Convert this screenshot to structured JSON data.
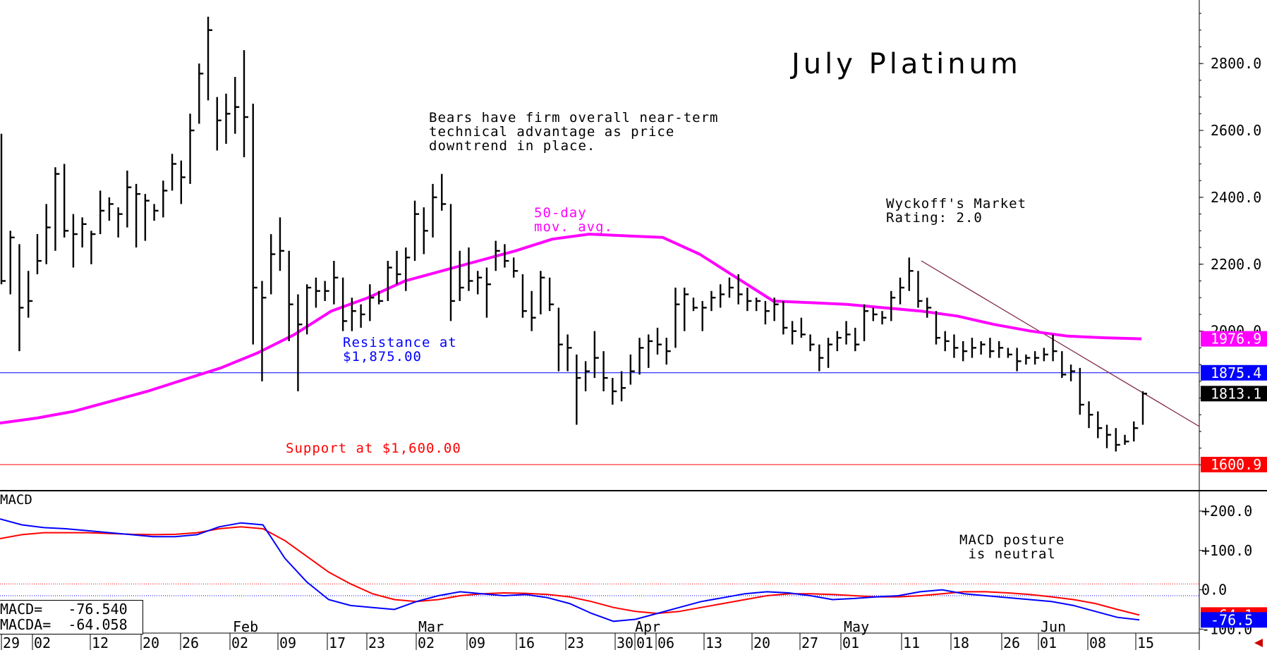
{
  "chart_data": {
    "type": "bar",
    "title": "July Platinum",
    "annotations": {
      "commentary": "Bears have firm overall near-term\ntechnical advantage as price\ndowntrend in place.",
      "ma_label": "50-day\nmov. avg.",
      "rating": "Wyckoff's Market\nRating: 2.0",
      "resistance": "Resistance at\n$1,875.00",
      "support": "Support at $1,600.00",
      "macd_comment": "MACD posture\n is neutral"
    },
    "price_axis": {
      "ylim": [
        1525,
        2990
      ],
      "ticks": [
        "2800.0",
        "2600.0",
        "2400.0",
        "2200.0",
        "2000.0"
      ],
      "tick_values": [
        2800,
        2600,
        2400,
        2200,
        2000
      ]
    },
    "price_tags": [
      {
        "value": 1976.9,
        "label": "1976.9",
        "color": "#ff00ff"
      },
      {
        "value": 1875.4,
        "label": "1875.4",
        "color": "#0000ff"
      },
      {
        "value": 1813.1,
        "label": "1813.1",
        "color": "#000000"
      },
      {
        "value": 1600.9,
        "label": "1600.9",
        "color": "#ff0000"
      }
    ],
    "resistance_level": 1875.4,
    "support_level": 1600.9,
    "trendline": {
      "from": [
        0,
        2210
      ],
      "to": [
        1,
        1715
      ]
    },
    "ohlc": [
      {
        "h": 2590,
        "l": 2140,
        "c": 2150
      },
      {
        "h": 2300,
        "l": 2110,
        "c": 2280
      },
      {
        "h": 2260,
        "l": 1940,
        "c": 2070
      },
      {
        "h": 2180,
        "l": 2040,
        "c": 2090
      },
      {
        "h": 2290,
        "l": 2170,
        "c": 2210
      },
      {
        "h": 2380,
        "l": 2200,
        "c": 2310
      },
      {
        "h": 2490,
        "l": 2240,
        "c": 2470
      },
      {
        "h": 2500,
        "l": 2280,
        "c": 2300
      },
      {
        "h": 2350,
        "l": 2190,
        "c": 2290
      },
      {
        "h": 2340,
        "l": 2250,
        "c": 2320
      },
      {
        "h": 2300,
        "l": 2200,
        "c": 2290
      },
      {
        "h": 2420,
        "l": 2290,
        "c": 2360
      },
      {
        "h": 2400,
        "l": 2330,
        "c": 2380
      },
      {
        "h": 2370,
        "l": 2280,
        "c": 2350
      },
      {
        "h": 2480,
        "l": 2310,
        "c": 2430
      },
      {
        "h": 2440,
        "l": 2250,
        "c": 2410
      },
      {
        "h": 2410,
        "l": 2270,
        "c": 2390
      },
      {
        "h": 2380,
        "l": 2330,
        "c": 2360
      },
      {
        "h": 2450,
        "l": 2340,
        "c": 2420
      },
      {
        "h": 2530,
        "l": 2420,
        "c": 2500
      },
      {
        "h": 2510,
        "l": 2380,
        "c": 2460
      },
      {
        "h": 2650,
        "l": 2440,
        "c": 2600
      },
      {
        "h": 2800,
        "l": 2620,
        "c": 2770
      },
      {
        "h": 2940,
        "l": 2690,
        "c": 2900
      },
      {
        "h": 2700,
        "l": 2540,
        "c": 2630
      },
      {
        "h": 2710,
        "l": 2560,
        "c": 2650
      },
      {
        "h": 2760,
        "l": 2590,
        "c": 2670
      },
      {
        "h": 2840,
        "l": 2520,
        "c": 2640
      },
      {
        "h": 2680,
        "l": 1960,
        "c": 2130
      },
      {
        "h": 2150,
        "l": 1850,
        "c": 2100
      },
      {
        "h": 2290,
        "l": 2110,
        "c": 2230
      },
      {
        "h": 2340,
        "l": 2180,
        "c": 2240
      },
      {
        "h": 2240,
        "l": 1970,
        "c": 2080
      },
      {
        "h": 2110,
        "l": 1820,
        "c": 2020
      },
      {
        "h": 2140,
        "l": 1990,
        "c": 2130
      },
      {
        "h": 2160,
        "l": 2070,
        "c": 2120
      },
      {
        "h": 2150,
        "l": 2090,
        "c": 2120
      },
      {
        "h": 2210,
        "l": 2080,
        "c": 2160
      },
      {
        "h": 2160,
        "l": 2000,
        "c": 2030
      },
      {
        "h": 2100,
        "l": 2000,
        "c": 2060
      },
      {
        "h": 2080,
        "l": 2010,
        "c": 2050
      },
      {
        "h": 2140,
        "l": 2030,
        "c": 2100
      },
      {
        "h": 2120,
        "l": 2080,
        "c": 2090
      },
      {
        "h": 2210,
        "l": 2090,
        "c": 2190
      },
      {
        "h": 2240,
        "l": 2140,
        "c": 2170
      },
      {
        "h": 2250,
        "l": 2120,
        "c": 2220
      },
      {
        "h": 2390,
        "l": 2210,
        "c": 2350
      },
      {
        "h": 2370,
        "l": 2230,
        "c": 2300
      },
      {
        "h": 2440,
        "l": 2280,
        "c": 2400
      },
      {
        "h": 2470,
        "l": 2360,
        "c": 2380
      },
      {
        "h": 2380,
        "l": 2030,
        "c": 2090
      },
      {
        "h": 2240,
        "l": 2090,
        "c": 2130
      },
      {
        "h": 2250,
        "l": 2120,
        "c": 2150
      },
      {
        "h": 2180,
        "l": 2110,
        "c": 2160
      },
      {
        "h": 2190,
        "l": 2040,
        "c": 2140
      },
      {
        "h": 2270,
        "l": 2180,
        "c": 2240
      },
      {
        "h": 2260,
        "l": 2190,
        "c": 2210
      },
      {
        "h": 2220,
        "l": 2160,
        "c": 2180
      },
      {
        "h": 2170,
        "l": 2040,
        "c": 2060
      },
      {
        "h": 2120,
        "l": 2000,
        "c": 2040
      },
      {
        "h": 2180,
        "l": 2050,
        "c": 2160
      },
      {
        "h": 2160,
        "l": 2060,
        "c": 2080
      },
      {
        "h": 2070,
        "l": 1880,
        "c": 1960
      },
      {
        "h": 1990,
        "l": 1880,
        "c": 1950
      },
      {
        "h": 1930,
        "l": 1720,
        "c": 1860
      },
      {
        "h": 1910,
        "l": 1820,
        "c": 1880
      },
      {
        "h": 2000,
        "l": 1860,
        "c": 1920
      },
      {
        "h": 1940,
        "l": 1820,
        "c": 1860
      },
      {
        "h": 1860,
        "l": 1780,
        "c": 1820
      },
      {
        "h": 1880,
        "l": 1790,
        "c": 1830
      },
      {
        "h": 1930,
        "l": 1840,
        "c": 1880
      },
      {
        "h": 1980,
        "l": 1870,
        "c": 1950
      },
      {
        "h": 1990,
        "l": 1890,
        "c": 1970
      },
      {
        "h": 2010,
        "l": 1930,
        "c": 1960
      },
      {
        "h": 1980,
        "l": 1900,
        "c": 1940
      },
      {
        "h": 2130,
        "l": 1950,
        "c": 2080
      },
      {
        "h": 2130,
        "l": 2000,
        "c": 2110
      },
      {
        "h": 2100,
        "l": 2060,
        "c": 2070
      },
      {
        "h": 2090,
        "l": 2000,
        "c": 2070
      },
      {
        "h": 2120,
        "l": 2060,
        "c": 2100
      },
      {
        "h": 2140,
        "l": 2070,
        "c": 2110
      },
      {
        "h": 2160,
        "l": 2100,
        "c": 2130
      },
      {
        "h": 2170,
        "l": 2080,
        "c": 2110
      },
      {
        "h": 2130,
        "l": 2060,
        "c": 2090
      },
      {
        "h": 2100,
        "l": 2060,
        "c": 2090
      },
      {
        "h": 2090,
        "l": 2020,
        "c": 2060
      },
      {
        "h": 2100,
        "l": 2030,
        "c": 2080
      },
      {
        "h": 2090,
        "l": 1990,
        "c": 2010
      },
      {
        "h": 2030,
        "l": 1960,
        "c": 2000
      },
      {
        "h": 2040,
        "l": 1980,
        "c": 1990
      },
      {
        "h": 1990,
        "l": 1940,
        "c": 1960
      },
      {
        "h": 1960,
        "l": 1880,
        "c": 1920
      },
      {
        "h": 1980,
        "l": 1890,
        "c": 1960
      },
      {
        "h": 2000,
        "l": 1940,
        "c": 1980
      },
      {
        "h": 2030,
        "l": 1960,
        "c": 1990
      },
      {
        "h": 2010,
        "l": 1940,
        "c": 1960
      },
      {
        "h": 2080,
        "l": 1970,
        "c": 2060
      },
      {
        "h": 2070,
        "l": 2030,
        "c": 2050
      },
      {
        "h": 2060,
        "l": 2020,
        "c": 2040
      },
      {
        "h": 2120,
        "l": 2030,
        "c": 2100
      },
      {
        "h": 2160,
        "l": 2080,
        "c": 2130
      },
      {
        "h": 2220,
        "l": 2120,
        "c": 2180
      },
      {
        "h": 2180,
        "l": 2070,
        "c": 2090
      },
      {
        "h": 2100,
        "l": 2040,
        "c": 2070
      },
      {
        "h": 2060,
        "l": 1960,
        "c": 1980
      },
      {
        "h": 2000,
        "l": 1940,
        "c": 1970
      },
      {
        "h": 1990,
        "l": 1920,
        "c": 1950
      },
      {
        "h": 1970,
        "l": 1910,
        "c": 1940
      },
      {
        "h": 1980,
        "l": 1920,
        "c": 1950
      },
      {
        "h": 1970,
        "l": 1930,
        "c": 1960
      },
      {
        "h": 1980,
        "l": 1920,
        "c": 1940
      },
      {
        "h": 1970,
        "l": 1920,
        "c": 1950
      },
      {
        "h": 1950,
        "l": 1920,
        "c": 1930
      },
      {
        "h": 1950,
        "l": 1880,
        "c": 1910
      },
      {
        "h": 1930,
        "l": 1900,
        "c": 1920
      },
      {
        "h": 1940,
        "l": 1900,
        "c": 1920
      },
      {
        "h": 1950,
        "l": 1910,
        "c": 1930
      },
      {
        "h": 1990,
        "l": 1910,
        "c": 1940
      },
      {
        "h": 1940,
        "l": 1860,
        "c": 1870
      },
      {
        "h": 1900,
        "l": 1850,
        "c": 1880
      },
      {
        "h": 1890,
        "l": 1750,
        "c": 1780
      },
      {
        "h": 1790,
        "l": 1710,
        "c": 1750
      },
      {
        "h": 1760,
        "l": 1680,
        "c": 1710
      },
      {
        "h": 1720,
        "l": 1650,
        "c": 1690
      },
      {
        "h": 1710,
        "l": 1640,
        "c": 1660
      },
      {
        "h": 1690,
        "l": 1660,
        "c": 1670
      },
      {
        "h": 1730,
        "l": 1670,
        "c": 1710
      },
      {
        "h": 1820,
        "l": 1720,
        "c": 1813.1
      }
    ],
    "ma50": [
      1725,
      1740,
      1760,
      1790,
      1820,
      1855,
      1890,
      1935,
      1990,
      2060,
      2100,
      2150,
      2180,
      2210,
      2240,
      2275,
      2290,
      2285,
      2280,
      2230,
      2160,
      2090,
      2085,
      2080,
      2070,
      2060,
      2045,
      2020,
      2000,
      1985,
      1980,
      1977
    ],
    "macd_axis": {
      "ylim": [
        -110,
        250
      ],
      "ticks": [
        "+200.0",
        "+100.0",
        "0.0",
        "-100.0"
      ],
      "tick_values": [
        200,
        100,
        0,
        -100
      ]
    },
    "macd_label": "MACD",
    "macd_tags": [
      {
        "value": -64.1,
        "label": "-64.1",
        "color": "#ff0000"
      },
      {
        "value": -76.5,
        "label": "-76.5",
        "color": "#0000ff"
      }
    ],
    "macd": [
      180,
      165,
      158,
      155,
      150,
      145,
      140,
      135,
      135,
      140,
      160,
      170,
      165,
      80,
      20,
      -25,
      -40,
      -45,
      -50,
      -30,
      -15,
      -5,
      -10,
      -15,
      -12,
      -20,
      -35,
      -60,
      -80,
      -75,
      -60,
      -45,
      -30,
      -20,
      -10,
      -5,
      -8,
      -15,
      -25,
      -22,
      -18,
      -15,
      -5,
      0,
      -10,
      -15,
      -20,
      -25,
      -30,
      -40,
      -55,
      -70,
      -76.5
    ],
    "macda": [
      130,
      140,
      145,
      145,
      145,
      143,
      141,
      140,
      141,
      145,
      155,
      160,
      155,
      125,
      85,
      45,
      15,
      -10,
      -25,
      -30,
      -25,
      -15,
      -10,
      -8,
      -9,
      -12,
      -18,
      -30,
      -45,
      -55,
      -60,
      -55,
      -45,
      -35,
      -25,
      -15,
      -10,
      -10,
      -12,
      -15,
      -18,
      -18,
      -15,
      -10,
      -5,
      -5,
      -8,
      -12,
      -18,
      -25,
      -35,
      -50,
      -64.1
    ],
    "macd_readout": {
      "macd": "MACD=   -76.540",
      "macda": "MACDA=  -64.058"
    },
    "month_labels": [
      "Feb",
      "Mar",
      "Apr",
      "May",
      "Jun"
    ],
    "day_labels": [
      "29",
      "02",
      "12",
      "20",
      "26",
      "02",
      "09",
      "17",
      "23",
      "02",
      "09",
      "16",
      "23",
      "30",
      "01",
      "06",
      "13",
      "20",
      "27",
      "01",
      "11",
      "18",
      "26",
      "01",
      "08",
      "15"
    ]
  }
}
